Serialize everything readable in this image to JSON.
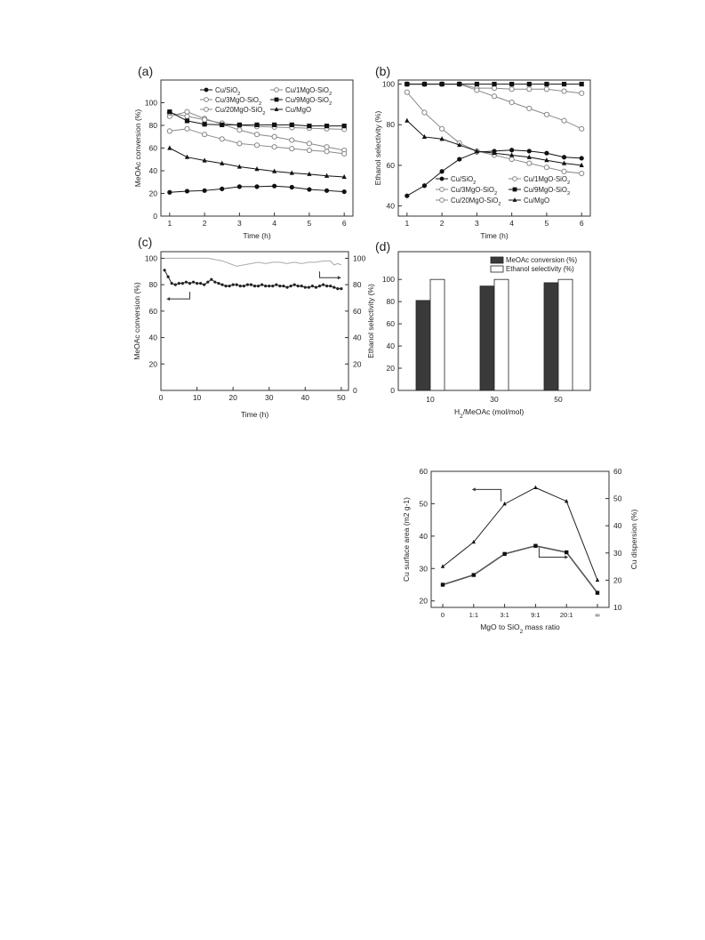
{
  "panels": {
    "a": {
      "label": "(a)"
    },
    "b": {
      "label": "(b)"
    },
    "c": {
      "label": "(c)"
    },
    "d": {
      "label": "(d)"
    }
  },
  "chart_data": [
    {
      "id": "a",
      "type": "line",
      "xlabel": "Time (h)",
      "ylabel": "MeOAc conversion (%)",
      "xlim": [
        0.75,
        6.25
      ],
      "ylim": [
        0,
        120
      ],
      "xticks": [
        1,
        2,
        3,
        4,
        5,
        6
      ],
      "yticks": [
        0,
        20,
        40,
        60,
        80,
        100
      ],
      "legend_position": "top",
      "series": [
        {
          "name": "Cu/SiO2",
          "marker": "filled-circle",
          "color": "#111111",
          "x": [
            1,
            1.5,
            2,
            2.5,
            3,
            3.5,
            4,
            4.5,
            5,
            5.5,
            6
          ],
          "y": [
            21,
            22,
            22.5,
            24,
            26,
            26,
            26.5,
            25.5,
            23.5,
            22.5,
            21.5
          ]
        },
        {
          "name": "Cu/1MgO-SiO2",
          "marker": "open-circle",
          "color": "#888888",
          "x": [
            1,
            1.5,
            2,
            2.5,
            3,
            3.5,
            4,
            4.5,
            5,
            5.5,
            6
          ],
          "y": [
            88,
            92,
            86,
            81,
            76,
            72,
            70,
            67,
            64,
            61,
            58
          ]
        },
        {
          "name": "Cu/3MgO-SiO2",
          "marker": "open-circle",
          "color": "#888888",
          "x": [
            1,
            1.5,
            2,
            2.5,
            3,
            3.5,
            4,
            4.5,
            5,
            5.5,
            6
          ],
          "y": [
            91,
            88,
            85,
            82,
            80,
            79,
            78.5,
            78,
            77.5,
            77,
            76.5
          ]
        },
        {
          "name": "Cu/9MgO-SiO2",
          "marker": "filled-square",
          "color": "#111111",
          "x": [
            1,
            1.5,
            2,
            2.5,
            3,
            3.5,
            4,
            4.5,
            5,
            5.5,
            6
          ],
          "y": [
            92,
            84,
            81,
            80.5,
            80.5,
            80.5,
            80.5,
            80.5,
            79.5,
            79.5,
            79.5
          ]
        },
        {
          "name": "Cu/20MgO-SiO2",
          "marker": "open-circle",
          "color": "#888888",
          "x": [
            1,
            1.5,
            2,
            2.5,
            3,
            3.5,
            4,
            4.5,
            5,
            5.5,
            6
          ],
          "y": [
            75,
            77,
            72,
            68,
            64,
            62.5,
            61,
            59.5,
            58,
            57,
            55
          ]
        },
        {
          "name": "Cu/MgO",
          "marker": "filled-triangle",
          "color": "#111111",
          "x": [
            1,
            1.5,
            2,
            2.5,
            3,
            3.5,
            4,
            4.5,
            5,
            5.5,
            6
          ],
          "y": [
            60,
            52,
            49,
            46.5,
            43.5,
            41.5,
            39.5,
            38,
            37,
            35.5,
            34.5
          ]
        }
      ]
    },
    {
      "id": "b",
      "type": "line",
      "xlabel": "Time (h)",
      "ylabel": "Ethanol selectivity (%)",
      "xlim": [
        0.75,
        6.25
      ],
      "ylim": [
        35,
        102
      ],
      "xticks": [
        1,
        2,
        3,
        4,
        5,
        6
      ],
      "yticks": [
        40,
        60,
        80,
        100
      ],
      "legend_position": "bottom",
      "series": [
        {
          "name": "Cu/SiO2",
          "marker": "filled-circle",
          "color": "#111111",
          "x": [
            1,
            1.5,
            2,
            2.5,
            3,
            3.5,
            4,
            4.5,
            5,
            5.5,
            6
          ],
          "y": [
            45,
            50,
            57,
            63,
            66.5,
            67,
            67.5,
            67,
            66,
            64,
            63.5
          ]
        },
        {
          "name": "Cu/1MgO-SiO2",
          "marker": "open-circle",
          "color": "#888888",
          "x": [
            1,
            1.5,
            2,
            2.5,
            3,
            3.5,
            4,
            4.5,
            5,
            5.5,
            6
          ],
          "y": [
            100,
            100,
            100,
            100,
            98,
            98,
            97.5,
            97.5,
            97.5,
            96.5,
            95.5
          ]
        },
        {
          "name": "Cu/3MgO-SiO2",
          "marker": "open-circle",
          "color": "#888888",
          "x": [
            1,
            1.5,
            2,
            2.5,
            3,
            3.5,
            4,
            4.5,
            5,
            5.5,
            6
          ],
          "y": [
            100,
            100,
            100,
            100,
            97,
            94,
            91,
            88,
            85,
            82,
            78
          ]
        },
        {
          "name": "Cu/9MgO-SiO2",
          "marker": "filled-square",
          "color": "#111111",
          "x": [
            1,
            1.5,
            2,
            2.5,
            3,
            3.5,
            4,
            4.5,
            5,
            5.5,
            6
          ],
          "y": [
            100,
            100,
            100,
            100,
            100,
            100,
            100,
            100,
            100,
            100,
            100
          ]
        },
        {
          "name": "Cu/20MgO-SiO2",
          "marker": "open-circle",
          "color": "#888888",
          "x": [
            1,
            1.5,
            2,
            2.5,
            3,
            3.5,
            4,
            4.5,
            5,
            5.5,
            6
          ],
          "y": [
            96,
            86,
            78,
            71,
            67,
            65,
            63,
            61,
            59,
            57,
            56
          ]
        },
        {
          "name": "Cu/MgO",
          "marker": "filled-triangle",
          "color": "#111111",
          "x": [
            1,
            1.5,
            2,
            2.5,
            3,
            3.5,
            4,
            4.5,
            5,
            5.5,
            6
          ],
          "y": [
            82,
            74,
            73,
            70,
            67,
            66,
            65,
            64,
            62.5,
            61,
            60
          ]
        }
      ]
    },
    {
      "id": "c",
      "type": "line",
      "xlabel": "Time (h)",
      "ylabel": "MeOAc conversion (%)",
      "y2label": "Ethanol selectivity (%)",
      "xlim": [
        0,
        52
      ],
      "ylim": [
        0,
        105
      ],
      "xticks": [
        0,
        10,
        20,
        30,
        40,
        50
      ],
      "yticks": [
        20,
        40,
        60,
        80,
        100
      ],
      "y2ticks": [
        0,
        20,
        40,
        60,
        80,
        100
      ],
      "series": [
        {
          "name": "MeOAc conversion",
          "axis": "left",
          "marker": "filled-circle-small",
          "color": "#222222",
          "x": [
            1,
            2,
            3,
            4,
            5,
            6,
            7,
            8,
            9,
            10,
            11,
            12,
            13,
            14,
            15,
            16,
            17,
            18,
            19,
            20,
            21,
            22,
            23,
            24,
            25,
            26,
            27,
            28,
            29,
            30,
            31,
            32,
            33,
            34,
            35,
            36,
            37,
            38,
            39,
            40,
            41,
            42,
            43,
            44,
            45,
            46,
            47,
            48,
            49,
            50
          ],
          "y": [
            91,
            86,
            81,
            80,
            81,
            81,
            82,
            81,
            82,
            81,
            81,
            80,
            82,
            84,
            82,
            81,
            80,
            79,
            79,
            80,
            80,
            79,
            79,
            80,
            80,
            79,
            79,
            80,
            79,
            79,
            79,
            80,
            79,
            79,
            78,
            79,
            80,
            79,
            79,
            78,
            78,
            79,
            78,
            79,
            80,
            79,
            79,
            78,
            77,
            77
          ]
        },
        {
          "name": "Ethanol selectivity",
          "axis": "right",
          "marker": "none",
          "color": "#aaaaaa",
          "x": [
            1,
            3,
            5,
            7,
            9,
            11,
            13,
            15,
            17,
            19,
            21,
            23,
            25,
            27,
            29,
            31,
            33,
            35,
            37,
            39,
            41,
            43,
            45,
            47,
            48,
            49,
            50
          ],
          "y": [
            100,
            100,
            100,
            100,
            100,
            100,
            100,
            99,
            98,
            96,
            94,
            95,
            96,
            97,
            96,
            97,
            97,
            96,
            97,
            96,
            97,
            97,
            98,
            98,
            95,
            96,
            95
          ]
        }
      ]
    },
    {
      "id": "d",
      "type": "bar",
      "xlabel": "H2/MeOAc (mol/mol)",
      "ylabel": "",
      "categories": [
        "10",
        "30",
        "50"
      ],
      "ylim": [
        0,
        125
      ],
      "yticks": [
        0,
        20,
        40,
        60,
        80,
        100
      ],
      "legend_position": "top-right",
      "series": [
        {
          "name": "MeOAc conversion (%)",
          "fill": "#3a3a3a",
          "values": [
            81,
            94,
            97
          ]
        },
        {
          "name": "Ethanol selectivity (%)",
          "fill": "#ffffff",
          "values": [
            100,
            100,
            100
          ]
        }
      ]
    },
    {
      "id": "e",
      "type": "line",
      "xlabel": "MgO to SiO2 mass ratio",
      "ylabel": "Cu surface area (m2 g-1)",
      "y2label": "Cu dispersion (%)",
      "categories": [
        "0",
        "1:1",
        "3:1",
        "9:1",
        "20:1",
        "∞"
      ],
      "ylim": [
        18,
        60
      ],
      "yticks": [
        20,
        30,
        40,
        50,
        60
      ],
      "y2lim": [
        10,
        60
      ],
      "y2ticks": [
        10,
        20,
        30,
        40,
        50,
        60
      ],
      "series": [
        {
          "name": "Cu surface area",
          "axis": "left",
          "marker": "filled-square",
          "color": "#555555",
          "values": [
            25,
            28,
            34.5,
            37,
            35,
            22.5
          ]
        },
        {
          "name": "Cu dispersion",
          "axis": "right",
          "marker": "filled-triangle",
          "color": "#222222",
          "values": [
            25,
            34,
            48,
            54,
            49,
            20
          ]
        }
      ]
    }
  ]
}
